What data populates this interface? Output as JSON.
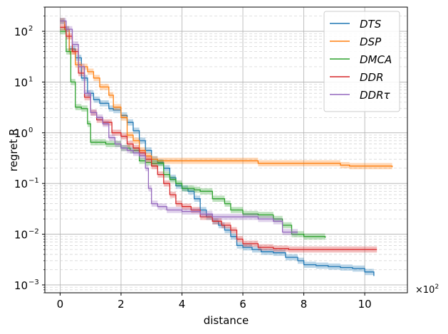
{
  "chart_data": {
    "type": "line",
    "title": "",
    "xlabel": "distance",
    "ylabel": "regret R",
    "x_multiplier_label": "×10",
    "x_multiplier_exp": "2",
    "xlim": [
      -0.5,
      11.4
    ],
    "ylim": [
      0.0007,
      300
    ],
    "yscale": "log",
    "x_ticks": [
      {
        "v": 0,
        "label": "0"
      },
      {
        "v": 2,
        "label": "2"
      },
      {
        "v": 4,
        "label": "4"
      },
      {
        "v": 6,
        "label": "6"
      },
      {
        "v": 8,
        "label": "8"
      },
      {
        "v": 10,
        "label": "10"
      }
    ],
    "y_ticks": [
      {
        "v": 0.001,
        "base": "10",
        "exp": "−3"
      },
      {
        "v": 0.01,
        "base": "10",
        "exp": "−2"
      },
      {
        "v": 0.1,
        "base": "10",
        "exp": "−1"
      },
      {
        "v": 1,
        "base": "10",
        "exp": "0"
      },
      {
        "v": 10,
        "base": "10",
        "exp": "1"
      },
      {
        "v": 100,
        "base": "10",
        "exp": "2"
      }
    ],
    "grid": true,
    "legend_position": "top-right",
    "series": [
      {
        "name": "DTS",
        "color": "#1f77b4",
        "x": [
          0,
          0.15,
          0.3,
          0.5,
          0.7,
          0.9,
          1.1,
          1.3,
          1.6,
          1.75,
          2.0,
          2.2,
          2.4,
          2.6,
          2.8,
          3.0,
          3.2,
          3.4,
          3.6,
          3.8,
          4.0,
          4.2,
          4.4,
          4.6,
          4.8,
          5.0,
          5.2,
          5.4,
          5.6,
          5.8,
          6.0,
          6.3,
          6.6,
          7.0,
          7.4,
          7.8,
          8.0,
          8.4,
          8.8,
          9.2,
          9.6,
          10.0,
          10.3
        ],
        "y": [
          160,
          110,
          45,
          30,
          12,
          6,
          4.5,
          3.8,
          3.0,
          2.8,
          2.2,
          1.6,
          1.1,
          0.7,
          0.45,
          0.3,
          0.26,
          0.2,
          0.13,
          0.09,
          0.08,
          0.07,
          0.05,
          0.03,
          0.022,
          0.018,
          0.015,
          0.012,
          0.009,
          0.006,
          0.0055,
          0.005,
          0.0045,
          0.0043,
          0.0035,
          0.003,
          0.0025,
          0.0024,
          0.0023,
          0.0022,
          0.0021,
          0.0018,
          0.0015
        ]
      },
      {
        "name": "DSP",
        "color": "#ff7f0e",
        "x": [
          0,
          0.15,
          0.3,
          0.5,
          0.7,
          0.9,
          1.1,
          1.3,
          1.6,
          1.75,
          2.0,
          2.2,
          2.4,
          2.6,
          2.8,
          3.0,
          3.2,
          3.5,
          4.0,
          5.0,
          6.0,
          6.5,
          7.0,
          8.0,
          8.5,
          9.2,
          9.5,
          10.0,
          10.9
        ],
        "y": [
          160,
          110,
          40,
          22,
          20,
          16,
          12,
          8,
          5.5,
          3.2,
          2.0,
          0.9,
          0.7,
          0.45,
          0.35,
          0.3,
          0.28,
          0.28,
          0.28,
          0.28,
          0.28,
          0.25,
          0.25,
          0.25,
          0.25,
          0.23,
          0.22,
          0.22,
          0.21
        ]
      },
      {
        "name": "DMCA",
        "color": "#2ca02c",
        "x": [
          0,
          0.2,
          0.35,
          0.5,
          0.7,
          0.9,
          1.0,
          1.5,
          2.0,
          2.3,
          2.6,
          2.8,
          3.0,
          3.2,
          3.4,
          3.6,
          3.8,
          4.0,
          4.2,
          4.4,
          4.6,
          5.0,
          5.4,
          5.6,
          6.0,
          6.5,
          7.0,
          7.3,
          7.6,
          8.0,
          8.7
        ],
        "y": [
          100,
          40,
          10,
          3.2,
          3.0,
          1.5,
          0.65,
          0.6,
          0.5,
          0.45,
          0.28,
          0.26,
          0.25,
          0.25,
          0.15,
          0.12,
          0.1,
          0.08,
          0.08,
          0.075,
          0.07,
          0.05,
          0.04,
          0.03,
          0.025,
          0.024,
          0.02,
          0.015,
          0.01,
          0.009,
          0.0085
        ]
      },
      {
        "name": "DDR",
        "color": "#d62728",
        "x": [
          0,
          0.2,
          0.4,
          0.6,
          0.8,
          1.0,
          1.2,
          1.4,
          1.7,
          2.0,
          2.2,
          2.4,
          2.6,
          2.8,
          3.0,
          3.2,
          3.4,
          3.6,
          3.8,
          4.0,
          4.3,
          4.6,
          5.0,
          5.3,
          5.6,
          5.8,
          6.0,
          6.5,
          7.0,
          7.5,
          8.0,
          9.0,
          10.4
        ],
        "y": [
          120,
          80,
          40,
          15,
          5,
          2.5,
          1.8,
          1.6,
          1.0,
          0.85,
          0.6,
          0.5,
          0.4,
          0.3,
          0.22,
          0.15,
          0.1,
          0.06,
          0.04,
          0.035,
          0.03,
          0.022,
          0.018,
          0.015,
          0.012,
          0.008,
          0.0065,
          0.0055,
          0.0052,
          0.005,
          0.005,
          0.005,
          0.005
        ]
      },
      {
        "name": "DDRτ",
        "color": "#9467bd",
        "x": [
          0,
          0.2,
          0.4,
          0.6,
          0.8,
          1.0,
          1.2,
          1.4,
          1.6,
          1.8,
          2.0,
          2.2,
          2.4,
          2.6,
          2.8,
          2.9,
          3.0,
          3.2,
          3.5,
          4.0,
          4.3,
          4.6,
          5.0,
          5.5,
          6.0,
          6.5,
          7.0,
          7.3,
          7.8
        ],
        "y": [
          160,
          110,
          55,
          20,
          6,
          2.5,
          2.0,
          1.5,
          0.8,
          0.6,
          0.5,
          0.45,
          0.4,
          0.35,
          0.2,
          0.08,
          0.04,
          0.035,
          0.03,
          0.028,
          0.028,
          0.025,
          0.022,
          0.022,
          0.022,
          0.02,
          0.018,
          0.011,
          0.011
        ]
      }
    ]
  }
}
